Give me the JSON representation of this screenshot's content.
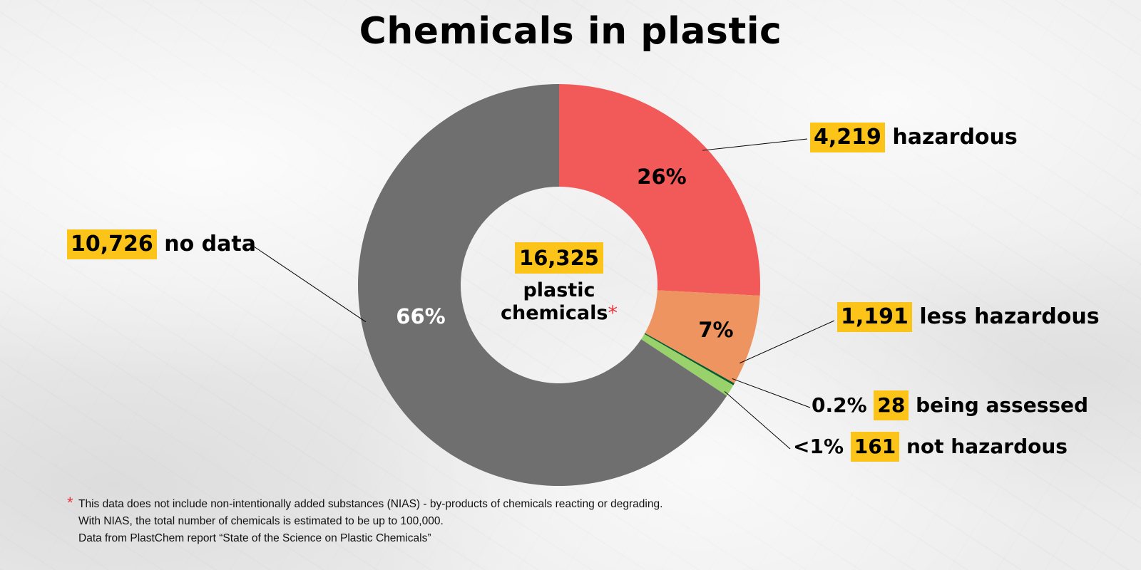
{
  "title": "Chemicals in plastic",
  "center": {
    "total": "16,325",
    "label_line1": "plastic",
    "label_line2": "chemicals",
    "asterisk": "*"
  },
  "chart_data": {
    "type": "pie",
    "title": "Chemicals in plastic",
    "total": 16325,
    "donut": true,
    "slices": [
      {
        "label": "hazardous",
        "count": 4219,
        "percent_label": "26%",
        "color": "#f25a5a"
      },
      {
        "label": "less hazardous",
        "count": 1191,
        "percent_label": "7%",
        "color": "#ed9460"
      },
      {
        "label": "being assessed",
        "count": 28,
        "percent_label": "0.2%",
        "color": "#0a5d2e"
      },
      {
        "label": "not hazardous",
        "count": 161,
        "percent_label": "<1%",
        "color": "#99d16a"
      },
      {
        "label": "no data",
        "count": 10726,
        "percent_label": "66%",
        "color": "#6f6f6f"
      }
    ]
  },
  "callouts": {
    "hazardous": {
      "count": "4,219",
      "text": "hazardous"
    },
    "less_hazardous": {
      "count": "1,191",
      "text": "less hazardous"
    },
    "being_assessed": {
      "pct": "0.2%",
      "count": "28",
      "text": "being assessed"
    },
    "not_hazardous": {
      "pct": "<1%",
      "count": "161",
      "text": "not hazardous"
    },
    "no_data": {
      "count": "10,726",
      "text": "no data"
    }
  },
  "footnote": {
    "asterisk": "*",
    "line1": "This data does not include non-intentionally added substances (NIAS) - by-products of chemicals reacting or degrading.",
    "line2": "With NIAS, the total number of chemicals is estimated to be up to 100,000.",
    "line3": "Data from PlastChem report “State of the Science on Plastic Chemicals”"
  },
  "colors": {
    "highlight": "#fcc419",
    "asterisk": "#e8323c"
  }
}
